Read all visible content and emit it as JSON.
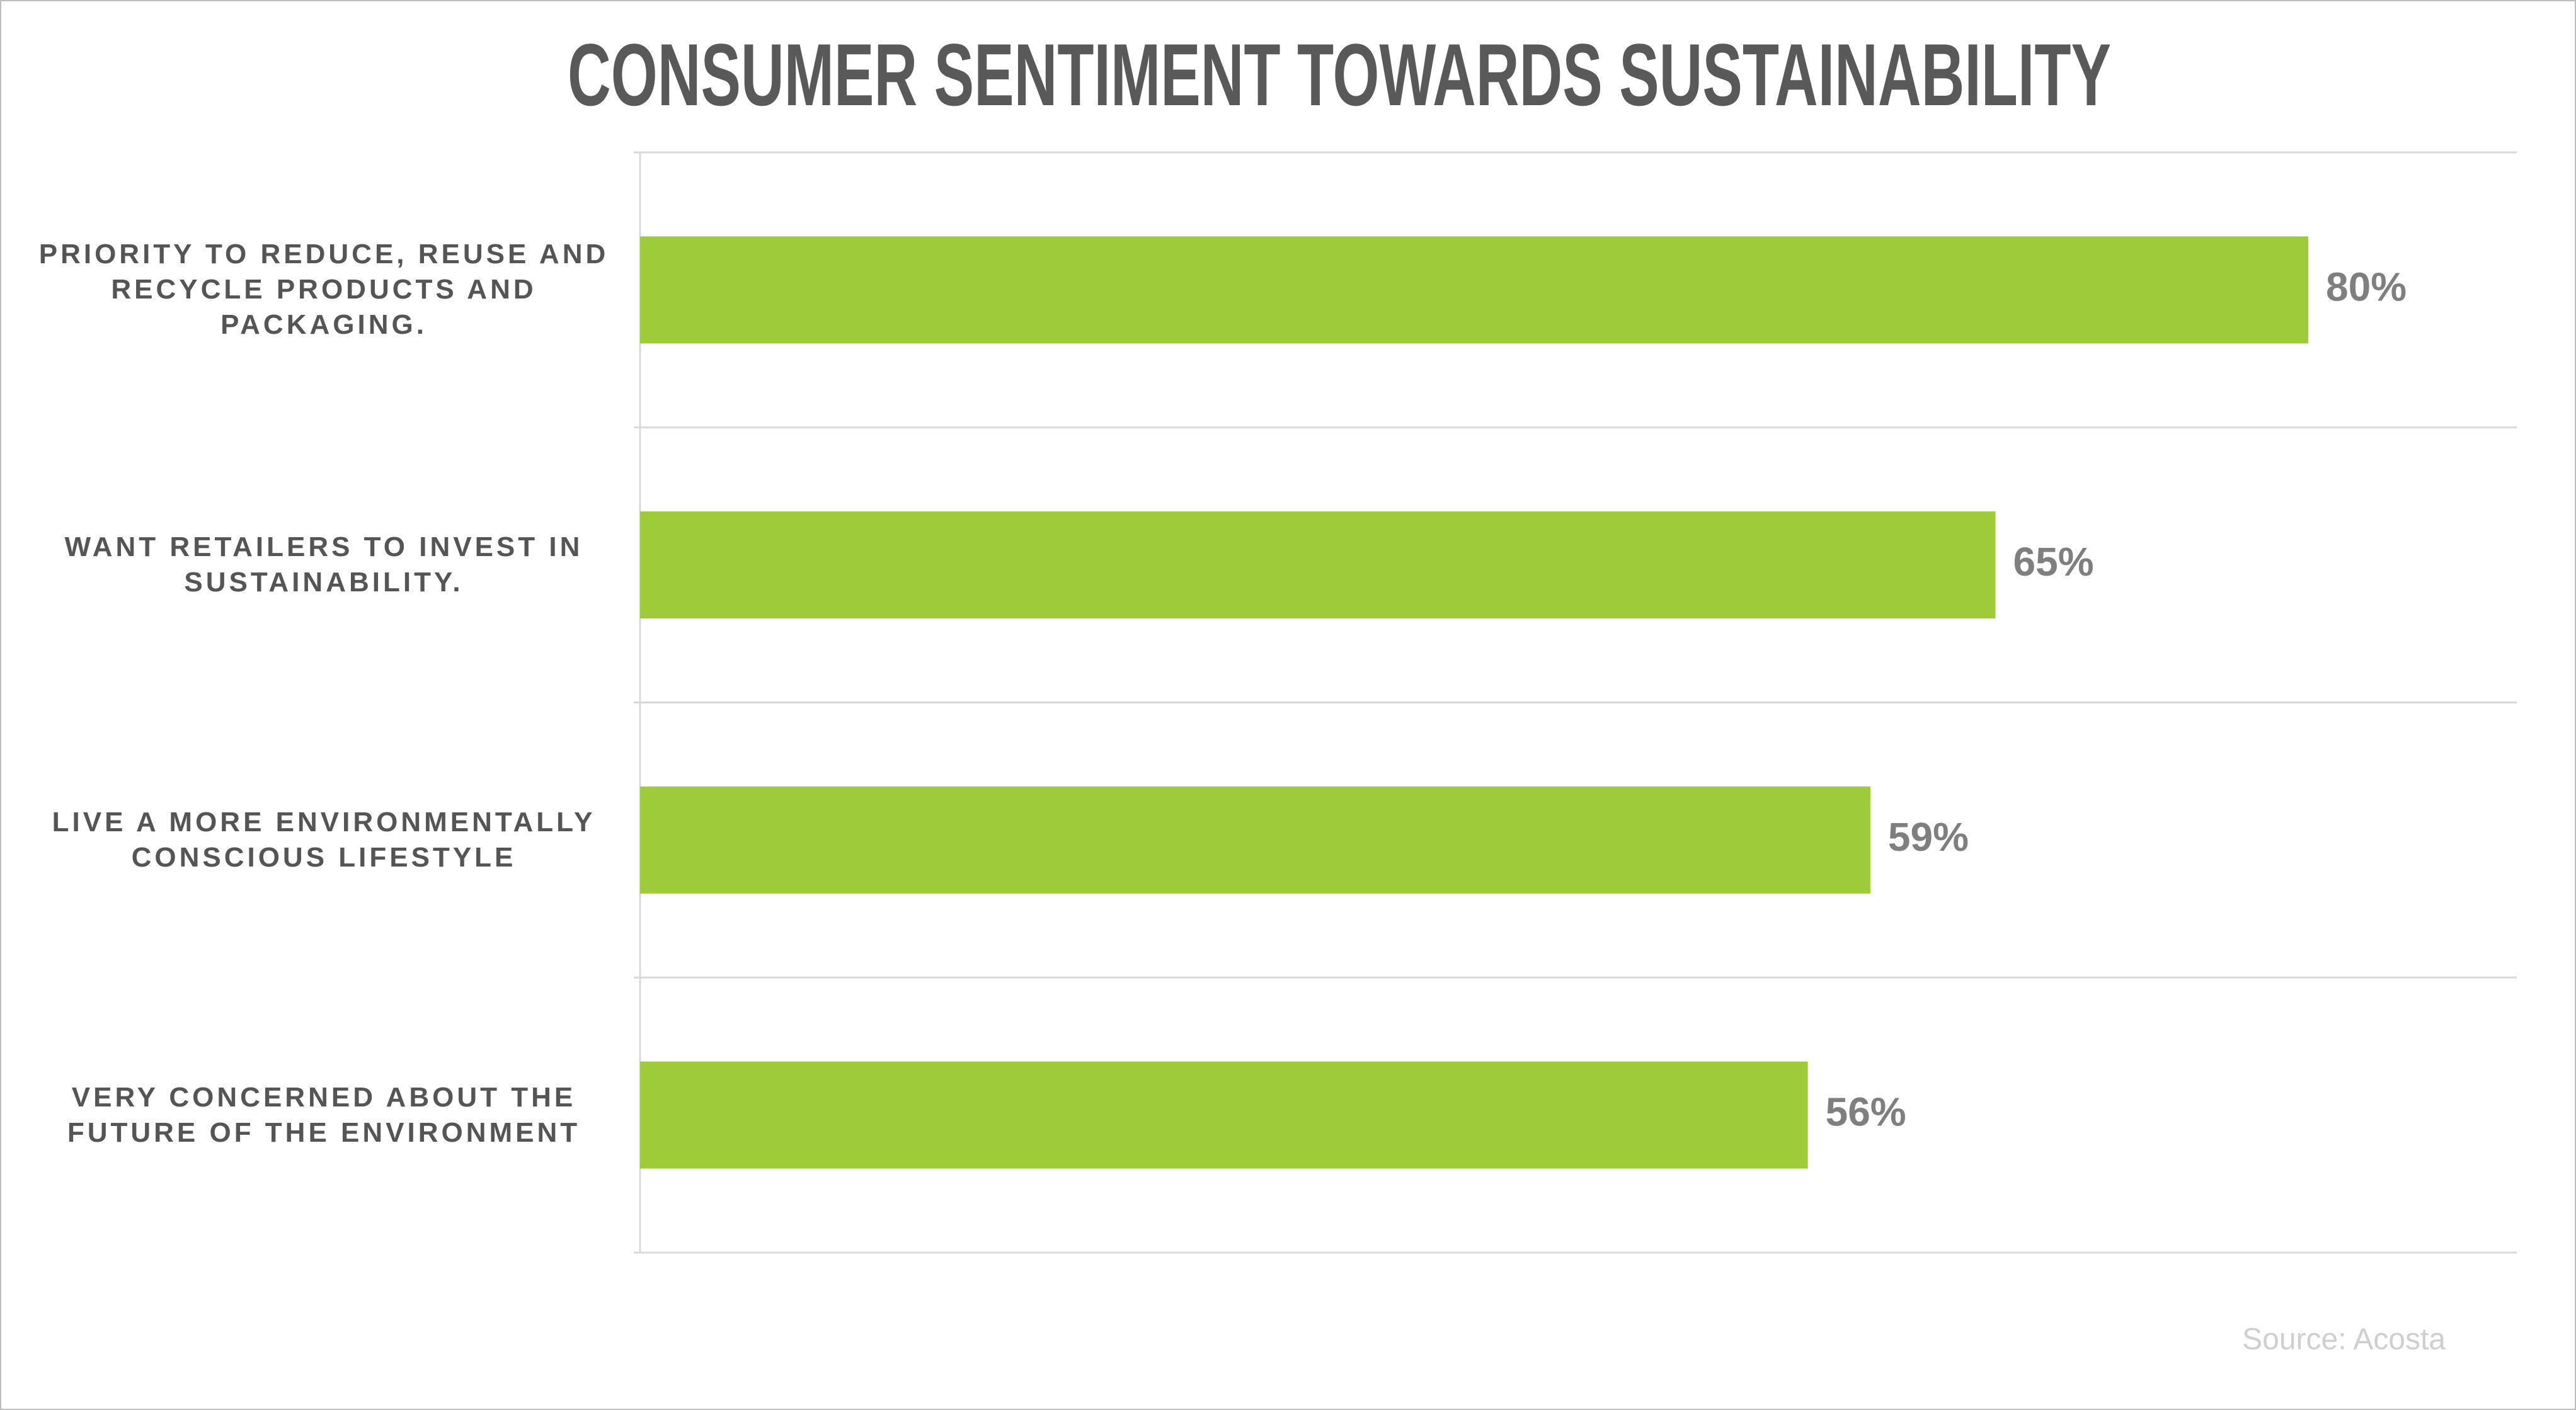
{
  "chart_data": {
    "type": "bar",
    "orientation": "horizontal",
    "title": "CONSUMER SENTIMENT TOWARDS SUSTAINABILITY",
    "categories": [
      "PRIORITY TO REDUCE, REUSE AND RECYCLE PRODUCTS AND PACKAGING.",
      "WANT RETAILERS TO INVEST IN SUSTAINABILITY.",
      "LIVE A MORE ENVIRONMENTALLY CONSCIOUS LIFESTYLE",
      "VERY CONCERNED ABOUT THE FUTURE OF THE ENVIRONMENT"
    ],
    "values": [
      80,
      65,
      59,
      56
    ],
    "value_labels": [
      "80%",
      "65%",
      "59%",
      "56%"
    ],
    "color": "#9ecb3a",
    "xlim": [
      0,
      90
    ],
    "source": "Source: Acosta"
  }
}
